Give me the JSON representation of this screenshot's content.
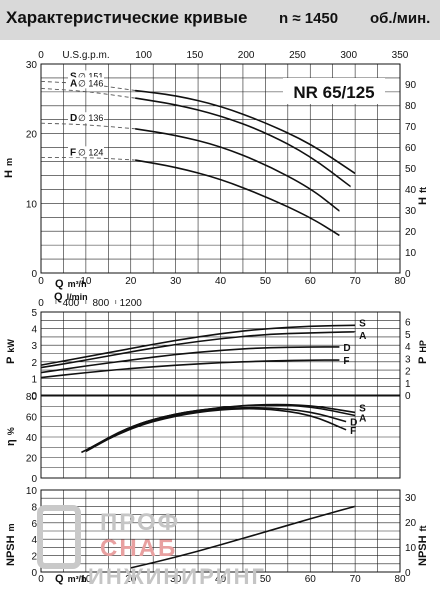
{
  "header": {
    "title": "Характеристические кривые",
    "speed": "n ≈ 1450",
    "speed_unit": "об./мин."
  },
  "watermark": {
    "line1": "ПРОФ",
    "line2": "СНАБ",
    "line3": "ИНЖИНИРИНГ"
  },
  "chart_data": [
    {
      "id": "head",
      "type": "line",
      "model_label": "NR 65/125",
      "ylabel": "H",
      "ylabel_unit": "m",
      "y2label": "H",
      "y2label_unit": "ft",
      "xlabel": "Q",
      "xlabel_unit": "m³/h",
      "top_axis_label": "U.S.g.p.m.",
      "xlim": [
        0,
        80
      ],
      "ylim": [
        0,
        30
      ],
      "x_ticks": [
        "0",
        "10",
        "20",
        "30",
        "40",
        "50",
        "60",
        "70",
        "80"
      ],
      "y_ticks": [
        "0",
        "10",
        "20",
        "30"
      ],
      "top_ticks": [
        "0",
        "50",
        "100",
        "150",
        "200",
        "250",
        "300",
        "350"
      ],
      "right_ticks": [
        "0",
        "10",
        "20",
        "30",
        "40",
        "50",
        "60",
        "70",
        "80",
        "90"
      ],
      "series": [
        {
          "name": "S",
          "diameter": "∅ 151",
          "x": [
            21,
            30,
            40,
            50,
            60,
            70
          ],
          "y": [
            26.2,
            25.5,
            24,
            21.6,
            18.6,
            14.3
          ],
          "low_flow": {
            "x": [
              0,
              10,
              21
            ],
            "y": [
              27.5,
              27.2,
              26.2
            ]
          }
        },
        {
          "name": "A",
          "diameter": "∅ 146",
          "x": [
            21,
            30,
            40,
            50,
            60,
            69
          ],
          "y": [
            25.1,
            24.2,
            22.6,
            20.2,
            16.8,
            12.4
          ],
          "low_flow": {
            "x": [
              0,
              10,
              21
            ],
            "y": [
              26.5,
              26.1,
              25.1
            ]
          }
        },
        {
          "name": "D",
          "diameter": "∅ 136",
          "x": [
            21,
            30,
            40,
            50,
            60,
            66.5
          ],
          "y": [
            20.7,
            19.8,
            18.2,
            15.6,
            12.2,
            8.9
          ],
          "low_flow": {
            "x": [
              0,
              10,
              21
            ],
            "y": [
              21.5,
              21.3,
              20.7
            ]
          }
        },
        {
          "name": "F",
          "diameter": "∅ 124",
          "x": [
            21,
            30,
            40,
            50,
            60,
            66.5
          ],
          "y": [
            16.2,
            15.2,
            13.5,
            11,
            8,
            5.4
          ],
          "low_flow": {
            "x": [
              0,
              10,
              21
            ],
            "y": [
              16.6,
              16.6,
              16.2
            ]
          }
        }
      ]
    },
    {
      "id": "power",
      "type": "line",
      "ylabel": "P",
      "ylabel_unit": "kW",
      "y2label": "P",
      "y2label_unit": "HP",
      "top_axis_label": "Q",
      "top_axis_unit": "l/min",
      "xlim": [
        0,
        80
      ],
      "ylim": [
        0,
        5
      ],
      "x_ticks": [
        "0",
        "10",
        "20",
        "30",
        "40",
        "50",
        "60",
        "70",
        "80"
      ],
      "top_ticks": [
        "0",
        "400",
        "800",
        "1200"
      ],
      "top_ticks_minor": [
        "200",
        "600",
        "1000"
      ],
      "y_ticks": [
        "0",
        "1",
        "2",
        "3",
        "4",
        "5"
      ],
      "right_ticks": [
        "0",
        "1",
        "2",
        "3",
        "4",
        "5",
        "6"
      ],
      "series": [
        {
          "name": "S",
          "x": [
            0,
            10,
            20,
            30,
            40,
            50,
            60,
            70
          ],
          "y": [
            1.8,
            2.3,
            2.8,
            3.3,
            3.7,
            4.0,
            4.15,
            4.2
          ]
        },
        {
          "name": "A",
          "x": [
            0,
            10,
            20,
            30,
            40,
            50,
            60,
            70
          ],
          "y": [
            1.65,
            2.1,
            2.6,
            3.05,
            3.4,
            3.65,
            3.75,
            3.8
          ]
        },
        {
          "name": "D",
          "x": [
            0,
            10,
            20,
            30,
            40,
            50,
            60,
            66.5
          ],
          "y": [
            1.35,
            1.75,
            2.1,
            2.45,
            2.7,
            2.85,
            2.9,
            2.9
          ]
        },
        {
          "name": "F",
          "x": [
            0,
            10,
            20,
            30,
            40,
            50,
            60,
            66.5
          ],
          "y": [
            1.05,
            1.35,
            1.6,
            1.8,
            1.95,
            2.05,
            2.1,
            2.1
          ]
        }
      ]
    },
    {
      "id": "efficiency",
      "type": "line",
      "ylabel": "η",
      "ylabel_unit": "%",
      "xlim": [
        0,
        80
      ],
      "ylim": [
        0,
        80
      ],
      "x_ticks": [
        "0",
        "10",
        "20",
        "30",
        "40",
        "50",
        "60",
        "70",
        "80"
      ],
      "y_ticks": [
        "0",
        "20",
        "40",
        "60",
        "80"
      ],
      "series": [
        {
          "name": "S",
          "x": [
            10,
            20,
            30,
            40,
            50,
            60,
            70
          ],
          "y": [
            27,
            51,
            63,
            69,
            72,
            71,
            64
          ]
        },
        {
          "name": "A",
          "x": [
            10,
            20,
            30,
            40,
            50,
            60,
            70
          ],
          "y": [
            27,
            51,
            63,
            69,
            71.5,
            70,
            61
          ]
        },
        {
          "name": "D",
          "x": [
            10,
            20,
            30,
            40,
            50,
            60,
            68
          ],
          "y": [
            26,
            50,
            62,
            68,
            69,
            65,
            55
          ]
        },
        {
          "name": "F",
          "x": [
            9,
            20,
            30,
            40,
            50,
            60,
            68
          ],
          "y": [
            25,
            49,
            61,
            67,
            68,
            62,
            47
          ]
        }
      ]
    },
    {
      "id": "npsh",
      "type": "line",
      "ylabel": "NPSH",
      "ylabel_unit": "m",
      "y2label": "NPSH",
      "y2label_unit": "ft",
      "xlabel": "Q",
      "xlabel_unit": "m³/h",
      "xlim": [
        0,
        80
      ],
      "ylim": [
        0,
        10
      ],
      "x_ticks": [
        "0",
        "10",
        "20",
        "30",
        "40",
        "50",
        "60",
        "70",
        "80"
      ],
      "y_ticks": [
        "0",
        "2",
        "4",
        "6",
        "8",
        "10"
      ],
      "y_ticks_minor": [
        "1",
        "3",
        "5",
        "7",
        "9"
      ],
      "right_ticks": [
        "0",
        "10",
        "20",
        "30"
      ],
      "series": [
        {
          "name": "NPSH",
          "x": [
            20,
            30,
            40,
            50,
            60,
            70
          ],
          "y": [
            0.5,
            1.8,
            3.3,
            4.9,
            6.5,
            8.0
          ]
        }
      ]
    }
  ]
}
